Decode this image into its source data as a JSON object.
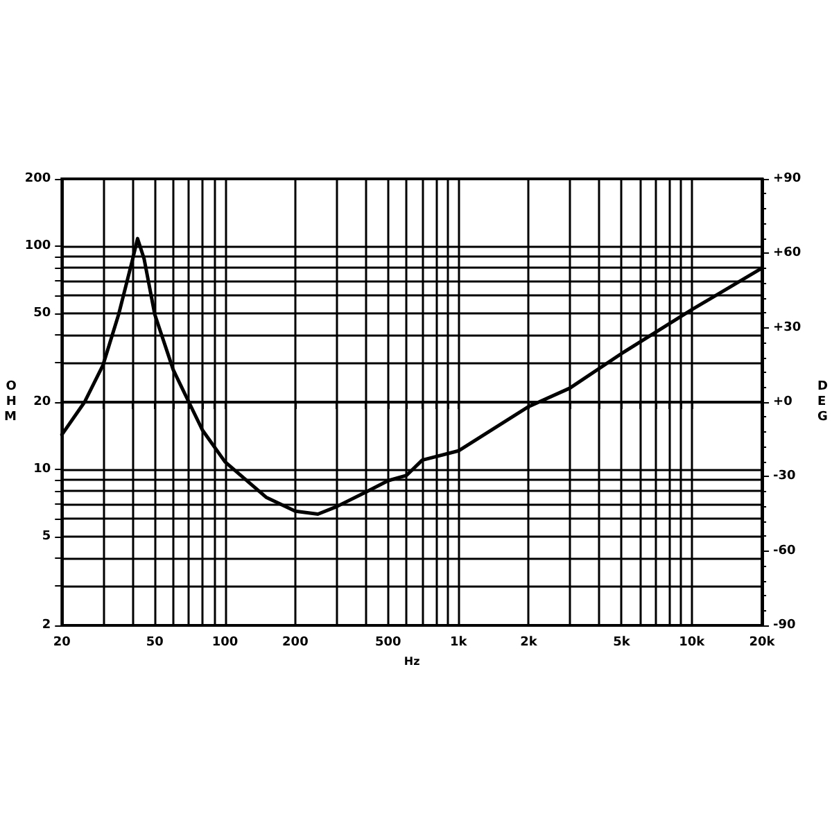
{
  "chart_data": {
    "type": "line",
    "xlabel": "Hz",
    "ylabel": "OHM",
    "y2label": "DEG",
    "x": [
      20,
      25,
      30,
      35,
      40,
      42.2,
      45,
      50,
      60,
      70,
      80,
      100,
      150,
      200,
      250,
      300,
      400,
      500,
      600,
      700,
      1000,
      2000,
      3000,
      5000,
      10000,
      20000
    ],
    "series": [
      {
        "color": "#000000",
        "values": [
          14.3,
          20,
          29.3,
          49.4,
          85.7,
          108,
          87.7,
          49.4,
          27.9,
          20,
          15,
          10.8,
          7.5,
          6.5,
          6.3,
          6.8,
          7.9,
          8.9,
          9.4,
          11,
          12.1,
          19.1,
          23.1,
          33,
          51.9,
          79.7
        ]
      }
    ],
    "log": "xy",
    "xlim": [
      20,
      20000
    ],
    "ylim": [
      2,
      200
    ],
    "y2lim": [
      -90,
      90
    ],
    "xticks": [
      20,
      {
        "value": 30,
        "label": null
      },
      {
        "value": 40,
        "label": null
      },
      50,
      {
        "value": 60,
        "label": null
      },
      {
        "value": 70,
        "label": null
      },
      {
        "value": 80,
        "label": null
      },
      {
        "value": 90,
        "label": null
      },
      100,
      200,
      {
        "value": 300,
        "label": null
      },
      {
        "value": 400,
        "label": null
      },
      500,
      {
        "value": 600,
        "label": null
      },
      {
        "value": 700,
        "label": null
      },
      {
        "value": 800,
        "label": null
      },
      {
        "value": 900,
        "label": null
      },
      {
        "value": 1000,
        "label": "1k"
      },
      {
        "value": 2000,
        "label": "2k"
      },
      {
        "value": 3000,
        "label": null
      },
      {
        "value": 4000,
        "label": null
      },
      {
        "value": 5000,
        "label": "5k"
      },
      {
        "value": 6000,
        "label": null
      },
      {
        "value": 7000,
        "label": null
      },
      {
        "value": 8000,
        "label": null
      },
      {
        "value": 9000,
        "label": null
      },
      {
        "value": 10000,
        "label": "10k"
      },
      {
        "value": 20000,
        "label": "20k"
      }
    ],
    "yticks": [
      2,
      {
        "value": 3,
        "label": null
      },
      {
        "value": 4,
        "label": null
      },
      5,
      {
        "value": 6,
        "label": null
      },
      {
        "value": 7,
        "label": null
      },
      {
        "value": 8,
        "label": null
      },
      {
        "value": 9,
        "label": null
      },
      10,
      20,
      {
        "value": 30,
        "label": null
      },
      {
        "value": 40,
        "label": null
      },
      50,
      {
        "value": 60,
        "label": null
      },
      {
        "value": 70,
        "label": null
      },
      {
        "value": 80,
        "label": null
      },
      {
        "value": 90,
        "label": null
      },
      100,
      200
    ],
    "y2ticks": [
      -90,
      -60,
      -30,
      {
        "value": 0,
        "label": "+0"
      },
      {
        "value": 30,
        "label": "+30"
      },
      {
        "value": 60,
        "label": "+60"
      },
      {
        "value": 90,
        "label": "+90"
      }
    ],
    "grid": true,
    "marker": "none",
    "line_style": "solid"
  }
}
